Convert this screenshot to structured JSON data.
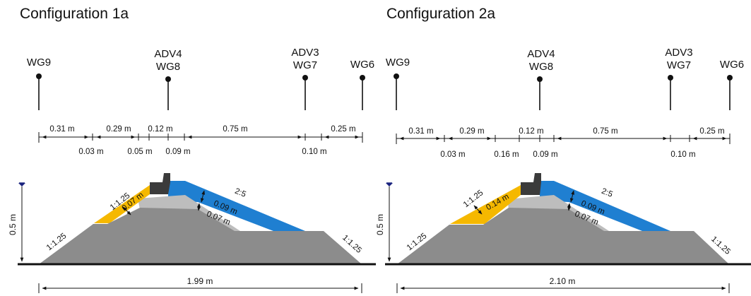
{
  "colors": {
    "core": "#8c8c8c",
    "filter": "#bdbdbd",
    "front_armour": "#f5b800",
    "rear_armour": "#1f7fd1",
    "crown_wall": "#3b3b3b",
    "ground": "#111111",
    "water_marker": "#1a237e"
  },
  "icons": {
    "gauge_marker": "dot-on-stem",
    "water_level": "inverted-triangle"
  },
  "configurations": [
    {
      "title": "Configuration 1a",
      "gauges": [
        {
          "lines": [
            "WG9"
          ]
        },
        {
          "lines": [
            "ADV4",
            "WG8"
          ]
        },
        {
          "lines": [
            "ADV3",
            "WG7"
          ]
        },
        {
          "lines": [
            "WG6"
          ]
        }
      ],
      "top_dimensions": [
        "0.31 m",
        "0.29 m",
        "0.12 m",
        "0.75 m",
        "0.25 m"
      ],
      "bottom_dimensions": [
        "0.03 m",
        "0.05 m",
        "0.09 m",
        "0.10 m"
      ],
      "height_label": "0.5 m",
      "slopes": {
        "left_toe": "1:1.25",
        "front_armour": "1:1.25",
        "rear_armour": "2:5",
        "right_toe": "1:1.25"
      },
      "thicknesses": {
        "front_armour": "0.07 m",
        "rear_armour": "0.09 m",
        "filter": "0.07 m"
      },
      "total_length": "1.99 m"
    },
    {
      "title": "Configuration 2a",
      "gauges": [
        {
          "lines": [
            "WG9"
          ]
        },
        {
          "lines": [
            "ADV4",
            "WG8"
          ]
        },
        {
          "lines": [
            "ADV3",
            "WG7"
          ]
        },
        {
          "lines": [
            "WG6"
          ]
        }
      ],
      "top_dimensions": [
        "0.31 m",
        "0.29 m",
        "0.12 m",
        "0.75 m",
        "0.25 m"
      ],
      "bottom_dimensions": [
        "0.03 m",
        "0.16 m",
        "0.09 m",
        "0.10 m"
      ],
      "height_label": "0.5 m",
      "slopes": {
        "left_toe": "1:1.25",
        "front_armour": "1:1.25",
        "rear_armour": "2:5",
        "right_toe": "1:1.25"
      },
      "thicknesses": {
        "front_armour": "0.14 m",
        "rear_armour": "0.09 m",
        "filter": "0.07 m"
      },
      "total_length": "2.10 m"
    }
  ]
}
